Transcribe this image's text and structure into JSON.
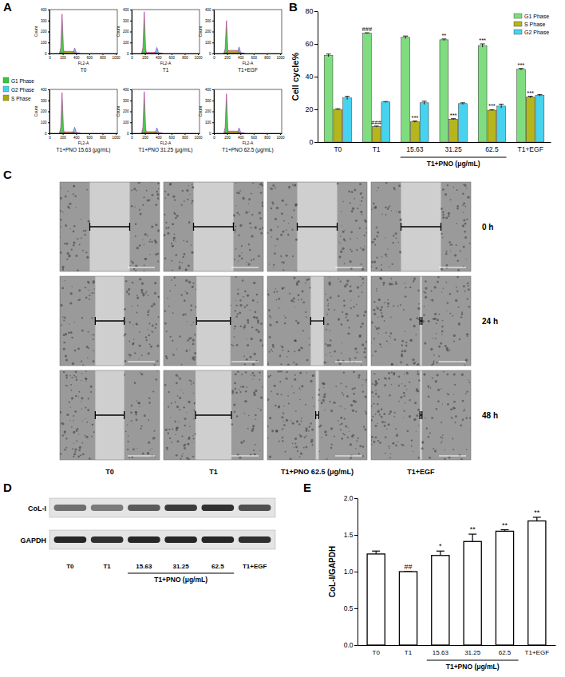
{
  "chart_data": [
    {
      "type": "area",
      "panel": "A",
      "subplot_titles": [
        "T0",
        "T1",
        "T1+EGF",
        "T1+PNO 15.63 (μg/mL)",
        "T1+PNO 31.25 (μg/mL)",
        "T1+PNO 62.5 (μg/mL)"
      ],
      "xlabel": "FL2-A",
      "ylabel": "Count",
      "x": [
        150,
        170,
        180,
        190,
        200,
        210,
        220,
        240,
        280,
        320,
        360,
        370,
        380,
        390,
        400,
        420,
        460
      ],
      "xlim": [
        0,
        1023
      ],
      "xticks": [
        0,
        200,
        400,
        600,
        800,
        1000
      ],
      "ylim": [
        0,
        400
      ],
      "yticks": [
        0,
        100,
        200,
        300,
        400
      ],
      "legend": "left",
      "series": [
        {
          "name": "G1 Phase",
          "color": "#35c935",
          "values": [
            [
              0,
              54,
              216,
              360,
              216,
              54,
              11,
              0,
              0,
              0,
              0,
              0,
              0,
              0,
              0,
              0,
              0
            ],
            [
              0,
              57,
              228,
              380,
              228,
              57,
              11,
              0,
              0,
              0,
              0,
              0,
              0,
              0,
              0,
              0,
              0
            ],
            [
              0,
              45,
              180,
              300,
              180,
              45,
              9,
              0,
              0,
              0,
              0,
              0,
              0,
              0,
              0,
              0,
              0
            ],
            [
              0,
              56,
              222,
              370,
              222,
              56,
              11,
              0,
              0,
              0,
              0,
              0,
              0,
              0,
              0,
              0,
              0
            ],
            [
              0,
              57,
              228,
              380,
              228,
              57,
              11,
              0,
              0,
              0,
              0,
              0,
              0,
              0,
              0,
              0,
              0
            ],
            [
              0,
              54,
              216,
              360,
              216,
              54,
              11,
              0,
              0,
              0,
              0,
              0,
              0,
              0,
              0,
              0,
              0
            ]
          ]
        },
        {
          "name": "G2 Phase",
          "color": "#3fd0ee",
          "values": [
            [
              0,
              0,
              0,
              0,
              0,
              0,
              0,
              0,
              0,
              0,
              15,
              35,
              50,
              35,
              15,
              3,
              0
            ],
            [
              0,
              0,
              0,
              0,
              0,
              0,
              0,
              0,
              0,
              0,
              17,
              39,
              55,
              39,
              17,
              3,
              0
            ],
            [
              0,
              0,
              0,
              0,
              0,
              0,
              0,
              0,
              0,
              0,
              18,
              42,
              60,
              42,
              18,
              3,
              0
            ],
            [
              0,
              0,
              0,
              0,
              0,
              0,
              0,
              0,
              0,
              0,
              17,
              39,
              55,
              39,
              17,
              3,
              0
            ],
            [
              0,
              0,
              0,
              0,
              0,
              0,
              0,
              0,
              0,
              0,
              15,
              35,
              50,
              35,
              15,
              3,
              0
            ],
            [
              0,
              0,
              0,
              0,
              0,
              0,
              0,
              0,
              0,
              0,
              15,
              35,
              50,
              35,
              15,
              3,
              0
            ]
          ]
        },
        {
          "name": "S Phase",
          "color": "#a8a800",
          "values": [
            [
              0,
              0,
              0,
              0,
              6,
              12,
              18,
              20,
              20,
              20,
              18,
              14,
              10,
              6,
              2,
              0,
              0
            ],
            [
              0,
              0,
              0,
              0,
              3,
              6,
              9,
              10,
              10,
              10,
              9,
              7,
              5,
              3,
              1,
              0,
              0
            ],
            [
              0,
              0,
              0,
              0,
              8,
              17,
              25,
              28,
              28,
              28,
              25,
              20,
              14,
              8,
              3,
              0,
              0
            ],
            [
              0,
              0,
              0,
              0,
              4,
              8,
              12,
              13,
              13,
              13,
              12,
              9,
              7,
              4,
              1,
              0,
              0
            ],
            [
              0,
              0,
              0,
              0,
              5,
              9,
              14,
              15,
              15,
              15,
              14,
              11,
              8,
              5,
              2,
              0,
              0
            ],
            [
              0,
              0,
              0,
              0,
              6,
              12,
              18,
              20,
              20,
              20,
              18,
              14,
              10,
              6,
              2,
              0,
              0
            ]
          ]
        }
      ]
    },
    {
      "type": "bar",
      "panel": "B",
      "ylabel": "Cell cycle%",
      "categories": [
        "T0",
        "T1",
        "15.63",
        "31.25",
        "62.5",
        "T1+EGF"
      ],
      "category_group": {
        "label": "T1+PNO (μg/mL)",
        "members": [
          "15.63",
          "31.25",
          "62.5"
        ]
      },
      "ylim": [
        0,
        80
      ],
      "yticks": [
        0,
        20,
        40,
        60,
        80
      ],
      "legend": "upper right",
      "series": [
        {
          "name": "G1 Phase",
          "color": "#7fdc7f",
          "values": [
            53,
            66.5,
            64,
            62.5,
            59,
            44.5
          ],
          "errors": [
            0.8,
            0.3,
            0.8,
            0.5,
            1,
            0.5
          ],
          "significance": [
            null,
            "###",
            null,
            "**",
            "***",
            "***"
          ]
        },
        {
          "name": "S Phase",
          "color": "#b5b51e",
          "values": [
            20,
            9.5,
            12.5,
            14,
            19.5,
            27.5
          ],
          "errors": [
            0.4,
            0.3,
            0.4,
            0.3,
            0.3,
            0.5
          ],
          "significance": [
            null,
            "###",
            "***",
            "***",
            "***",
            "***"
          ]
        },
        {
          "name": "G2 Phase",
          "color": "#47d3ef",
          "values": [
            27,
            24.5,
            24,
            23.5,
            22,
            28.5
          ],
          "errors": [
            1,
            0.3,
            1,
            0.5,
            1.2,
            0.5
          ],
          "significance": [
            null,
            null,
            null,
            null,
            null,
            null
          ]
        }
      ]
    },
    {
      "type": "bar",
      "panel": "E",
      "ylabel": "CoL-I/GAPDH",
      "categories": [
        "T0",
        "T1",
        "15.63",
        "31.25",
        "62.5",
        "T1+EGF"
      ],
      "category_group": {
        "label": "T1+PNO (μg/mL)",
        "members": [
          "15.63",
          "31.25",
          "62.5"
        ]
      },
      "ylim": [
        0,
        2
      ],
      "yticks": [
        {
          "value": 0,
          "label": "0.0"
        },
        0.5,
        {
          "value": 1,
          "label": "1.0"
        },
        1.5,
        {
          "value": 2,
          "label": "2.0"
        }
      ],
      "color": "#ffffff",
      "values": [
        1.24,
        1.0,
        1.22,
        1.41,
        1.55,
        1.69
      ],
      "errors": [
        0.04,
        0,
        0.06,
        0.1,
        0.02,
        0.05
      ],
      "significance": [
        null,
        "##",
        "*",
        "**",
        "**",
        "**"
      ]
    }
  ],
  "wound_healing": {
    "panel": "C",
    "columns": [
      "T0",
      "T1",
      "T1+PNO 62.5 (μg/mL)",
      "T1+EGF"
    ],
    "rows": [
      "0 h",
      "24 h",
      "48 h"
    ],
    "wound_width": [
      [
        0.4,
        0.29,
        0.29
      ],
      [
        0.4,
        0.34,
        0.36
      ],
      [
        0.4,
        0.13,
        0.03
      ],
      [
        0.4,
        0.02,
        0.02
      ]
    ]
  },
  "western_blot": {
    "panel": "D",
    "lanes": [
      "T0",
      "T1",
      "15.63",
      "31.25",
      "62.5",
      "T1+EGF"
    ],
    "lane_group": {
      "label": "T1+PNO (μg/mL)",
      "members": [
        "15.63",
        "31.25",
        "62.5"
      ]
    },
    "rows": [
      {
        "label": "CoL-I",
        "intensity": [
          0.55,
          0.5,
          0.65,
          0.8,
          0.85,
          0.7
        ]
      },
      {
        "label": "GAPDH",
        "intensity": [
          0.9,
          0.85,
          0.9,
          0.9,
          0.9,
          0.85
        ]
      }
    ]
  }
}
